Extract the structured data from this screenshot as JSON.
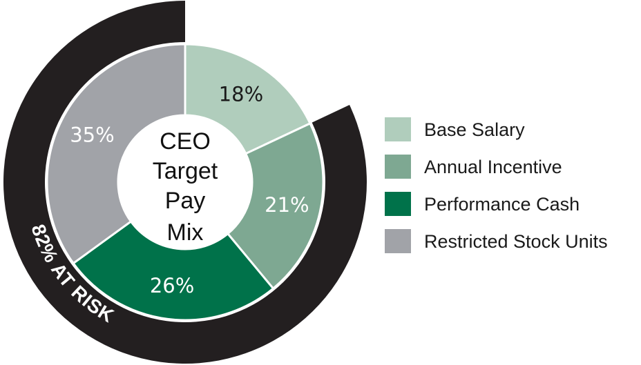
{
  "chart_data": {
    "type": "pie",
    "variant": "donut",
    "title": "CEO Target Pay Mix",
    "center_lines": [
      "CEO",
      "Target",
      "Pay",
      "Mix"
    ],
    "slices": [
      {
        "name": "Base Salary",
        "value": 18,
        "label": "18%",
        "color": "#b0cdbc",
        "label_color": "#1a1a1a"
      },
      {
        "name": "Annual Incentive",
        "value": 21,
        "label": "21%",
        "color": "#7ea892",
        "label_color": "#ffffff"
      },
      {
        "name": "Performance Cash",
        "value": 26,
        "label": "26%",
        "color": "#00724a",
        "label_color": "#ffffff"
      },
      {
        "name": "Restricted Stock Units",
        "value": 35,
        "label": "35%",
        "color": "#a1a3a8",
        "label_color": "#ffffff"
      }
    ],
    "at_risk": {
      "value": 82,
      "label": "82% AT RISK",
      "color": "#231f20"
    },
    "legend": [
      "Base Salary",
      "Annual Incentive",
      "Performance Cash",
      "Restricted Stock Units"
    ],
    "legend_position": "right"
  }
}
